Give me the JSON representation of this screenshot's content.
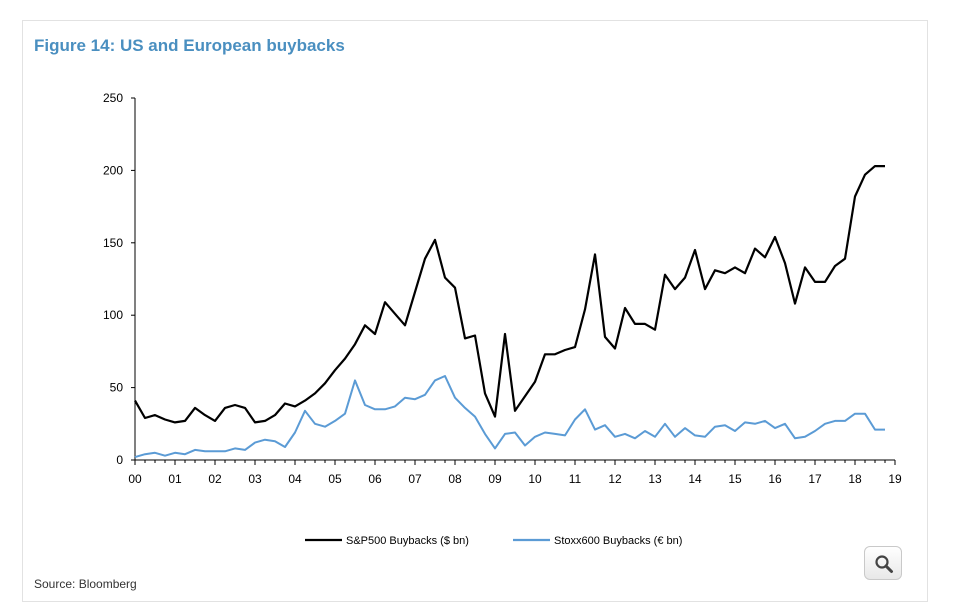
{
  "title": "Figure 14: US and European buybacks",
  "source": "Source: Bloomberg",
  "icons": {
    "zoom": "magnifier-icon"
  },
  "colors": {
    "title": "#4a8fc0",
    "sp500": "#000000",
    "stoxx": "#5b9bd5"
  },
  "chart_data": {
    "type": "line",
    "title": "Figure 14: US and European buybacks",
    "xlabel": "",
    "ylabel": "",
    "ylim": [
      0,
      250
    ],
    "yticks": [
      0,
      50,
      100,
      150,
      200,
      250
    ],
    "xlim": [
      2000,
      2019
    ],
    "xticks": [
      "00",
      "01",
      "02",
      "03",
      "04",
      "05",
      "06",
      "07",
      "08",
      "09",
      "10",
      "11",
      "12",
      "13",
      "14",
      "15",
      "16",
      "17",
      "18",
      "19"
    ],
    "legend": "bottom-center",
    "grid": false,
    "series": [
      {
        "name": "S&P500 Buybacks ($ bn)",
        "color": "#000000",
        "x": [
          2000.0,
          2000.25,
          2000.5,
          2000.75,
          2001.0,
          2001.25,
          2001.5,
          2001.75,
          2002.0,
          2002.25,
          2002.5,
          2002.75,
          2003.0,
          2003.25,
          2003.5,
          2003.75,
          2004.0,
          2004.25,
          2004.5,
          2004.75,
          2005.0,
          2005.25,
          2005.5,
          2005.75,
          2006.0,
          2006.25,
          2006.5,
          2006.75,
          2007.0,
          2007.25,
          2007.5,
          2007.75,
          2008.0,
          2008.25,
          2008.5,
          2008.75,
          2009.0,
          2009.25,
          2009.5,
          2009.75,
          2010.0,
          2010.25,
          2010.5,
          2010.75,
          2011.0,
          2011.25,
          2011.5,
          2011.75,
          2012.0,
          2012.25,
          2012.5,
          2012.75,
          2013.0,
          2013.25,
          2013.5,
          2013.75,
          2014.0,
          2014.25,
          2014.5,
          2014.75,
          2015.0,
          2015.25,
          2015.5,
          2015.75,
          2016.0,
          2016.25,
          2016.5,
          2016.75,
          2017.0,
          2017.25,
          2017.5,
          2017.75,
          2018.0,
          2018.25,
          2018.5,
          2018.75
        ],
        "values": [
          41,
          29,
          31,
          28,
          26,
          27,
          36,
          31,
          27,
          36,
          38,
          36,
          26,
          27,
          31,
          39,
          37,
          41,
          46,
          53,
          62,
          70,
          80,
          93,
          87,
          109,
          101,
          93,
          116,
          139,
          152,
          126,
          119,
          84,
          86,
          46,
          30,
          87,
          34,
          44,
          54,
          73,
          73,
          76,
          78,
          104,
          142,
          85,
          77,
          105,
          94,
          94,
          90,
          128,
          118,
          126,
          145,
          118,
          131,
          129,
          133,
          129,
          146,
          140,
          154,
          136,
          108,
          133,
          123,
          123,
          134,
          139,
          182,
          197,
          203,
          203
        ]
      },
      {
        "name": "Stoxx600 Buybacks (€ bn)",
        "color": "#5b9bd5",
        "x": [
          2000.0,
          2000.25,
          2000.5,
          2000.75,
          2001.0,
          2001.25,
          2001.5,
          2001.75,
          2002.0,
          2002.25,
          2002.5,
          2002.75,
          2003.0,
          2003.25,
          2003.5,
          2003.75,
          2004.0,
          2004.25,
          2004.5,
          2004.75,
          2005.0,
          2005.25,
          2005.5,
          2005.75,
          2006.0,
          2006.25,
          2006.5,
          2006.75,
          2007.0,
          2007.25,
          2007.5,
          2007.75,
          2008.0,
          2008.25,
          2008.5,
          2008.75,
          2009.0,
          2009.25,
          2009.5,
          2009.75,
          2010.0,
          2010.25,
          2010.5,
          2010.75,
          2011.0,
          2011.25,
          2011.5,
          2011.75,
          2012.0,
          2012.25,
          2012.5,
          2012.75,
          2013.0,
          2013.25,
          2013.5,
          2013.75,
          2014.0,
          2014.25,
          2014.5,
          2014.75,
          2015.0,
          2015.25,
          2015.5,
          2015.75,
          2016.0,
          2016.25,
          2016.5,
          2016.75,
          2017.0,
          2017.25,
          2017.5,
          2017.75,
          2018.0,
          2018.25,
          2018.5,
          2018.75
        ],
        "values": [
          2,
          4,
          5,
          3,
          5,
          4,
          7,
          6,
          6,
          6,
          8,
          7,
          12,
          14,
          13,
          9,
          19,
          34,
          25,
          23,
          27,
          32,
          55,
          38,
          35,
          35,
          37,
          43,
          42,
          45,
          55,
          58,
          43,
          36,
          30,
          18,
          8,
          18,
          19,
          10,
          16,
          19,
          18,
          17,
          28,
          35,
          21,
          24,
          16,
          18,
          15,
          20,
          16,
          25,
          16,
          22,
          17,
          16,
          23,
          24,
          20,
          26,
          25,
          27,
          22,
          25,
          15,
          16,
          20,
          25,
          27,
          27,
          32,
          32,
          21,
          21
        ]
      }
    ]
  }
}
